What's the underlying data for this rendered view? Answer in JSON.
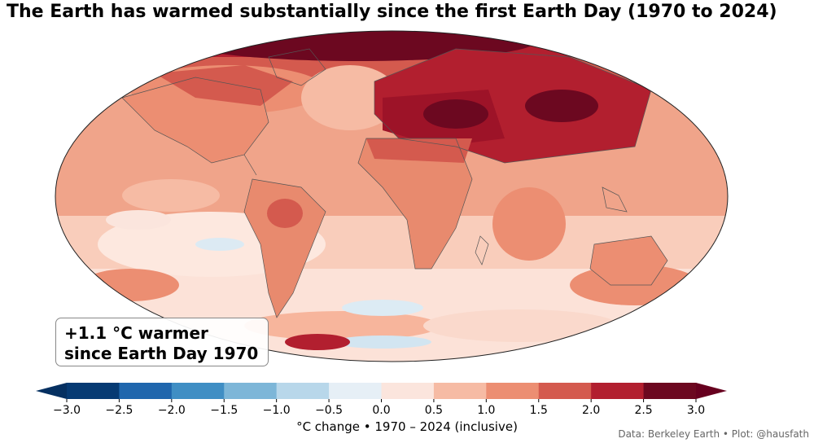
{
  "title": "The Earth has warmed substantially since the first Earth Day (1970 to 2024)",
  "callout": {
    "line1": "+1.1 °C warmer",
    "line2": "since Earth Day 1970"
  },
  "colorbar": {
    "label": "°C change  •  1970 – 2024 (inclusive)",
    "ticks": [
      "−3.0",
      "−2.5",
      "−2.0",
      "−1.5",
      "−1.0",
      "−0.5",
      "0.0",
      "0.5",
      "1.0",
      "1.5",
      "2.0",
      "2.5",
      "3.0"
    ],
    "colors": [
      "#063a73",
      "#1f66ad",
      "#3f8ec4",
      "#7db6d8",
      "#b8d7ea",
      "#e6eff6",
      "#fbe5dd",
      "#f6bba4",
      "#ec8e72",
      "#d45a4e",
      "#b21f2f",
      "#6c0820"
    ],
    "extend_low_color": "#053061",
    "extend_high_color": "#67001f"
  },
  "credit": "Data: Berkeley Earth  •  Plot: @hausfath",
  "palette": {
    "ocean_base": "#f2a88f",
    "land_base": "#e88a6e"
  }
}
